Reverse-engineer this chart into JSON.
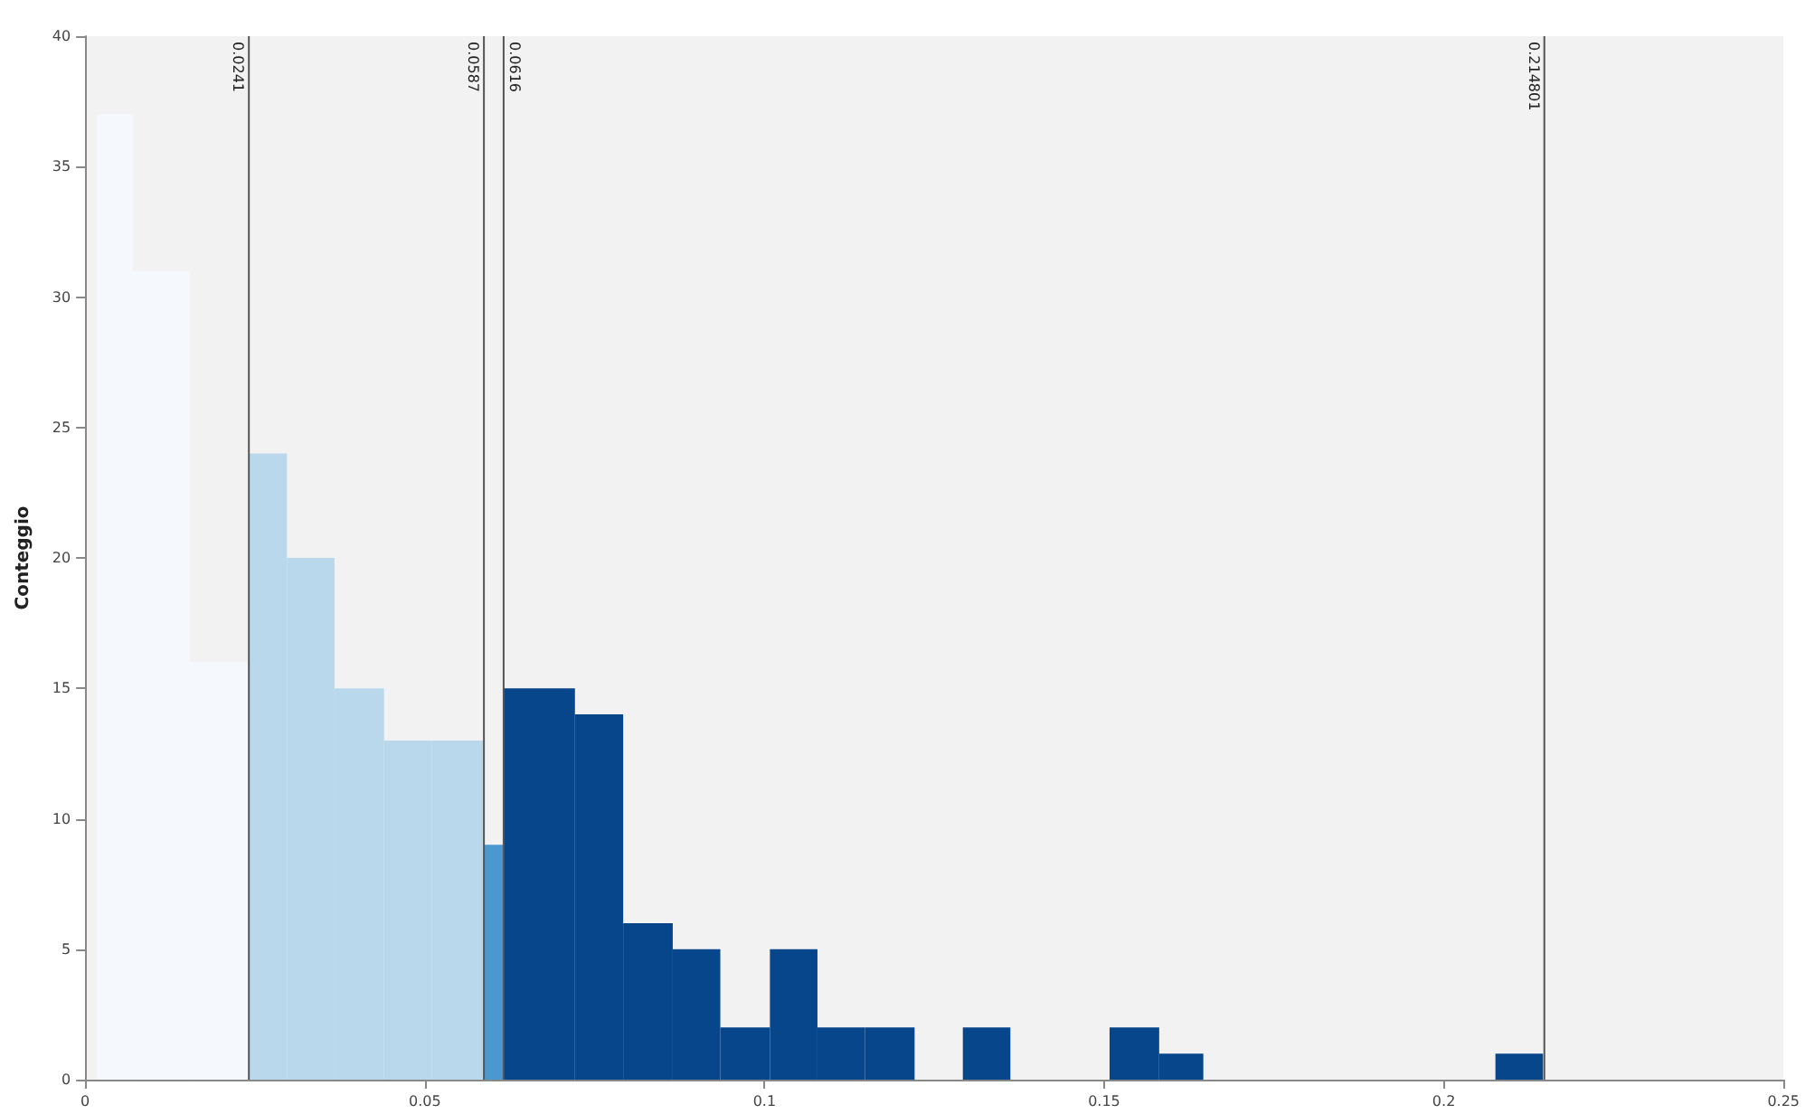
{
  "chart_data": {
    "type": "histogram",
    "ylabel": "Conteggio",
    "bins": [
      0.0018,
      0.007,
      0.0154,
      0.0241,
      0.0297,
      0.0367,
      0.044,
      0.051,
      0.0587,
      0.0616,
      0.0721,
      0.0792,
      0.0865,
      0.0935,
      0.1008,
      0.1078,
      0.1148,
      0.1221,
      0.1292,
      0.1362,
      0.1508,
      0.1581,
      0.1646,
      0.2076,
      0.2146
    ],
    "values": [
      37,
      31,
      16,
      24,
      20,
      15,
      13,
      13,
      9,
      15,
      14,
      6,
      5,
      2,
      5,
      2,
      2,
      0,
      2,
      0,
      2,
      1,
      0,
      1
    ],
    "colors": [
      "#f5f9fd",
      "#f5f9fd",
      "#f5f9fd",
      "#b9d8ec",
      "#b9d8ec",
      "#b9d8ec",
      "#b9d8ec",
      "#b9d8ec",
      "#4a98cf",
      "#08468b",
      "#08468b",
      "#08468b",
      "#08468b",
      "#08468b",
      "#08468b",
      "#08468b",
      "#08468b",
      "#08468b",
      "#08468b",
      "#08468b",
      "#08468b",
      "#08468b",
      "#08468b",
      "#08468b"
    ],
    "xlim": [
      0,
      0.25
    ],
    "xticks": [
      0,
      0.05,
      0.1,
      0.15,
      0.2,
      0.25
    ],
    "ylim": [
      0,
      40
    ],
    "yticks": [
      0,
      5,
      10,
      15,
      20,
      25,
      30,
      35,
      40
    ],
    "ref_lines": [
      {
        "axis": "x",
        "value": 0.0241,
        "label": "0.0241",
        "color": "#555555"
      },
      {
        "axis": "x",
        "value": 0.0587,
        "label": "0.0587",
        "color": "#555555"
      },
      {
        "axis": "x",
        "value": 0.0616,
        "label": "0.0616",
        "color": "#555555"
      },
      {
        "axis": "x",
        "value": 0.214801,
        "label": "0.214801",
        "color": "#555555"
      }
    ],
    "grid": false
  }
}
